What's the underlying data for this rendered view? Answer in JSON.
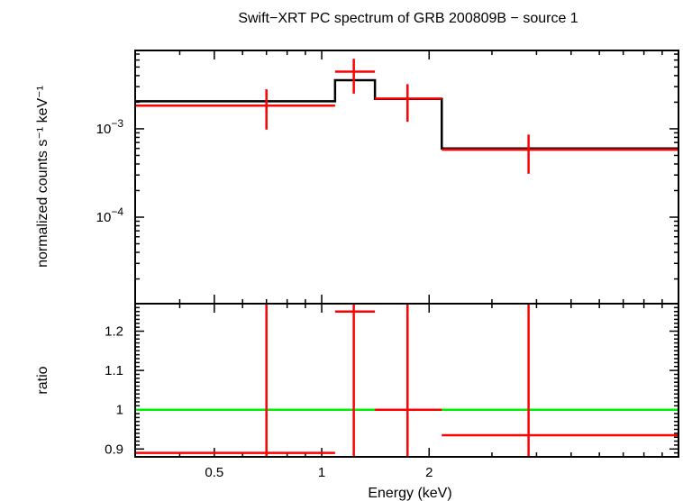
{
  "chart_data": {
    "type": "line",
    "title": "Swift−XRT PC spectrum of GRB 200809B − source 1",
    "xlabel": "Energy (keV)",
    "x_scale": "log",
    "xlim": [
      0.3,
      10
    ],
    "x_ticks": [
      {
        "value": 0.5,
        "label": "0.5"
      },
      {
        "value": 1,
        "label": "1"
      },
      {
        "value": 2,
        "label": "2"
      }
    ],
    "panels": [
      {
        "id": "spectrum",
        "ylabel": "normalized counts s⁻¹ keV⁻¹",
        "y_scale": "log",
        "ylim": [
          1.05e-05,
          0.0077
        ],
        "y_ticks": [
          {
            "value": 0.001,
            "base": "10",
            "exp": "−3"
          },
          {
            "value": 0.0001,
            "base": "10",
            "exp": "−4"
          }
        ],
        "series": [
          {
            "name": "data",
            "kind": "errorbar",
            "color": "#ff0000",
            "points": [
              {
                "x": 0.7,
                "xlo": 0.3,
                "xhi": 1.09,
                "y": 0.00183,
                "ylo": 0.00098,
                "yhi": 0.0028
              },
              {
                "x": 1.23,
                "xlo": 1.09,
                "xhi": 1.41,
                "y": 0.00443,
                "ylo": 0.0025,
                "yhi": 0.0062
              },
              {
                "x": 1.74,
                "xlo": 1.41,
                "xhi": 2.17,
                "y": 0.0022,
                "ylo": 0.0012,
                "yhi": 0.0032
              },
              {
                "x": 3.8,
                "xlo": 2.17,
                "xhi": 10,
                "y": 0.00058,
                "ylo": 0.00031,
                "yhi": 0.00086
              }
            ]
          },
          {
            "name": "model",
            "kind": "step",
            "color": "#000000",
            "bins": [
              {
                "xlo": 0.3,
                "xhi": 1.09,
                "y": 0.00205
              },
              {
                "xlo": 1.09,
                "xhi": 1.41,
                "y": 0.00355
              },
              {
                "xlo": 1.41,
                "xhi": 2.17,
                "y": 0.00218
              },
              {
                "xlo": 2.17,
                "xhi": 10,
                "y": 0.0006
              }
            ]
          }
        ]
      },
      {
        "id": "ratio",
        "ylabel": "ratio",
        "y_scale": "linear",
        "ylim": [
          0.88,
          1.27
        ],
        "y_ticks": [
          {
            "value": 0.9,
            "label": "0.9"
          },
          {
            "value": 1.0,
            "label": "1"
          },
          {
            "value": 1.1,
            "label": "1.1"
          },
          {
            "value": 1.2,
            "label": "1.2"
          }
        ],
        "reference_line": {
          "y": 1.0,
          "color": "#00ee00"
        },
        "series": [
          {
            "name": "ratio",
            "kind": "errorbar",
            "color": "#ff0000",
            "points": [
              {
                "x": 0.7,
                "xlo": 0.3,
                "xhi": 1.09,
                "y": 0.89,
                "ylo": 0.88,
                "yhi": 1.27
              },
              {
                "x": 1.23,
                "xlo": 1.09,
                "xhi": 1.41,
                "y": 1.25,
                "ylo": 0.88,
                "yhi": 1.27
              },
              {
                "x": 1.74,
                "xlo": 1.41,
                "xhi": 2.17,
                "y": 1.0,
                "ylo": 0.88,
                "yhi": 1.27
              },
              {
                "x": 3.8,
                "xlo": 2.17,
                "xhi": 10,
                "y": 0.935,
                "ylo": 0.88,
                "yhi": 1.27
              }
            ]
          }
        ]
      }
    ]
  }
}
